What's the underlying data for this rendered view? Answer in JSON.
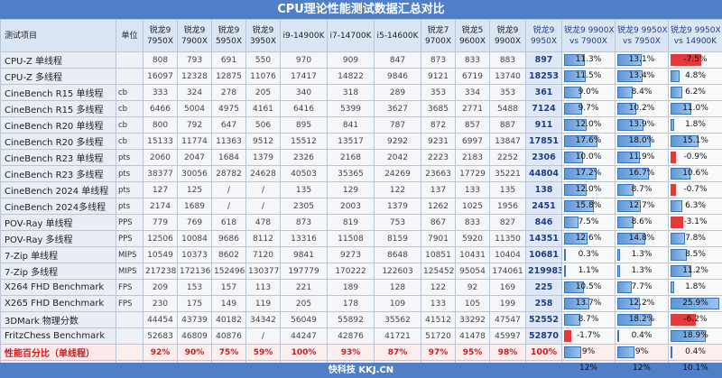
{
  "title": "CPU理论性能测试数据汇总对比",
  "footer": "快科技 KKJ.CN",
  "headers": {
    "item": "测试项目",
    "unit": "单位",
    "cpus": [
      {
        "line1": "锐龙9",
        "line2": "7950X"
      },
      {
        "line1": "锐龙9",
        "line2": "7900X"
      },
      {
        "line1": "锐龙9",
        "line2": "5950X"
      },
      {
        "line1": "锐龙9",
        "line2": "3950X"
      },
      {
        "line1": "i9-14900K",
        "line2": ""
      },
      {
        "line1": "i7-14700K",
        "line2": ""
      },
      {
        "line1": "i5-14600K",
        "line2": ""
      },
      {
        "line1": "锐龙7",
        "line2": "9700X"
      },
      {
        "line1": "锐龙5",
        "line2": "9600X"
      },
      {
        "line1": "锐龙9",
        "line2": "9900X"
      },
      {
        "line1": "锐龙9",
        "line2": "9950X"
      }
    ],
    "comparisons": [
      {
        "line1": "锐龙9 9900X",
        "line2": "vs 7900X"
      },
      {
        "line1": "锐龙9 9950X",
        "line2": "vs 7950X"
      },
      {
        "line1": "锐龙9 9950X",
        "line2": "vs 14900K"
      }
    ]
  },
  "chart_data": {
    "type": "table",
    "title": "CPU理论性能测试数据汇总对比",
    "rows": [
      {
        "name": "CPU-Z 单线程",
        "unit": "",
        "values": [
          "808",
          "793",
          "691",
          "550",
          "970",
          "909",
          "847",
          "873",
          "833",
          "883",
          "897"
        ],
        "cmp": [
          "11.3%",
          "13.1%",
          "-7.5%"
        ],
        "cmpv": [
          11.3,
          13.1,
          -7.5
        ]
      },
      {
        "name": "CPU-Z 多线程",
        "unit": "",
        "values": [
          "16097",
          "12328",
          "12875",
          "11076",
          "17417",
          "14822",
          "9846",
          "9121",
          "6719",
          "13740",
          "18253"
        ],
        "cmp": [
          "11.5%",
          "13.4%",
          "4.8%"
        ],
        "cmpv": [
          11.5,
          13.4,
          4.8
        ]
      },
      {
        "name": "CineBench R15 单线程",
        "unit": "cb",
        "values": [
          "333",
          "324",
          "278",
          "205",
          "340",
          "318",
          "289",
          "353",
          "334",
          "353",
          "361"
        ],
        "cmp": [
          "9.0%",
          "8.4%",
          "6.2%"
        ],
        "cmpv": [
          9.0,
          8.4,
          6.2
        ]
      },
      {
        "name": "CineBench R15 多线程",
        "unit": "cb",
        "values": [
          "6466",
          "5004",
          "4975",
          "4161",
          "6416",
          "5399",
          "3627",
          "3685",
          "2771",
          "5488",
          "7124"
        ],
        "cmp": [
          "9.7%",
          "10.2%",
          "11.0%"
        ],
        "cmpv": [
          9.7,
          10.2,
          11.0
        ]
      },
      {
        "name": "CineBench R20 单线程",
        "unit": "cb",
        "values": [
          "800",
          "792",
          "647",
          "506",
          "895",
          "841",
          "787",
          "872",
          "857",
          "887",
          "911"
        ],
        "cmp": [
          "12.0%",
          "13.9%",
          "1.8%"
        ],
        "cmpv": [
          12.0,
          13.9,
          1.8
        ]
      },
      {
        "name": "CineBench R20 多线程",
        "unit": "cb",
        "values": [
          "15133",
          "11774",
          "11363",
          "9512",
          "15512",
          "13517",
          "9292",
          "9231",
          "6997",
          "13847",
          "17851"
        ],
        "cmp": [
          "17.6%",
          "18.0%",
          "15.1%"
        ],
        "cmpv": [
          17.6,
          18.0,
          15.1
        ]
      },
      {
        "name": "CineBench R23 单线程",
        "unit": "pts",
        "values": [
          "2060",
          "2047",
          "1684",
          "1379",
          "2326",
          "2168",
          "2042",
          "2223",
          "2183",
          "2252",
          "2306"
        ],
        "cmp": [
          "10.0%",
          "11.9%",
          "-0.9%"
        ],
        "cmpv": [
          10.0,
          11.9,
          -0.9
        ]
      },
      {
        "name": "CineBench R23 多线程",
        "unit": "pts",
        "values": [
          "38377",
          "30056",
          "28782",
          "24628",
          "40503",
          "35365",
          "24269",
          "23663",
          "17729",
          "35221",
          "44804"
        ],
        "cmp": [
          "17.2%",
          "16.7%",
          "10.6%"
        ],
        "cmpv": [
          17.2,
          16.7,
          10.6
        ]
      },
      {
        "name": "CineBench 2024 单线程",
        "unit": "pts",
        "values": [
          "127",
          "125",
          "/",
          "/",
          "135",
          "129",
          "122",
          "137",
          "133",
          "135",
          "138"
        ],
        "cmp": [
          "12.0%",
          "8.7%",
          "-0.7%"
        ],
        "cmpv": [
          12.0,
          8.7,
          -0.7
        ]
      },
      {
        "name": "CineBench 2024多线程",
        "unit": "pts",
        "values": [
          "2174",
          "1689",
          "/",
          "/",
          "2305",
          "2003",
          "1379",
          "1262",
          "1025",
          "1956",
          "2451"
        ],
        "cmp": [
          "15.8%",
          "12.7%",
          "6.3%"
        ],
        "cmpv": [
          15.8,
          12.7,
          6.3
        ]
      },
      {
        "name": "POV-Ray 单线程",
        "unit": "PPS",
        "values": [
          "779",
          "769",
          "618",
          "478",
          "873",
          "819",
          "753",
          "867",
          "833",
          "827",
          "846"
        ],
        "cmp": [
          "7.5%",
          "8.6%",
          "-3.1%"
        ],
        "cmpv": [
          7.5,
          8.6,
          -3.1
        ]
      },
      {
        "name": "POV-Ray 多线程",
        "unit": "PPS",
        "values": [
          "12506",
          "10084",
          "9686",
          "8112",
          "13316",
          "11508",
          "8159",
          "7901",
          "5920",
          "11350",
          "14351"
        ],
        "cmp": [
          "12.6%",
          "14.8%",
          "7.8%"
        ],
        "cmpv": [
          12.6,
          14.8,
          7.8
        ]
      },
      {
        "name": "7-Zip 单线程",
        "unit": "MIPS",
        "values": [
          "10549",
          "10373",
          "8602",
          "7120",
          "9841",
          "9273",
          "8648",
          "10851",
          "10431",
          "10404",
          "10681"
        ],
        "cmp": [
          "0.3%",
          "1.3%",
          "8.5%"
        ],
        "cmpv": [
          0.3,
          1.3,
          8.5
        ]
      },
      {
        "name": "7-Zip 多线程",
        "unit": "MIPS",
        "values": [
          "217238",
          "172136",
          "152496",
          "130377",
          "197779",
          "170222",
          "122603",
          "125452",
          "95054",
          "174061",
          "219983"
        ],
        "cmp": [
          "1.1%",
          "1.3%",
          "11.2%"
        ],
        "cmpv": [
          1.1,
          1.3,
          11.2
        ]
      },
      {
        "name": "X264 FHD Benchmark",
        "unit": "FPS",
        "values": [
          "209",
          "153",
          "157",
          "113",
          "221",
          "189",
          "128",
          "122",
          "92",
          "169",
          "225"
        ],
        "cmp": [
          "10.5%",
          "7.7%",
          "1.8%"
        ],
        "cmpv": [
          10.5,
          7.7,
          1.8
        ]
      },
      {
        "name": "X265 FHD Benchmark",
        "unit": "FPS",
        "values": [
          "230",
          "175",
          "149",
          "119",
          "205",
          "178",
          "109",
          "133",
          "105",
          "199",
          "258"
        ],
        "cmp": [
          "13.7%",
          "12.2%",
          "25.9%"
        ],
        "cmpv": [
          13.7,
          12.2,
          25.9
        ]
      },
      {
        "name": "3DMark 物理分数",
        "unit": "",
        "values": [
          "44454",
          "43739",
          "40182",
          "34342",
          "56049",
          "55892",
          "35562",
          "41512",
          "33292",
          "47547",
          "52552"
        ],
        "cmp": [
          "8.7%",
          "18.2%",
          "-6.2%"
        ],
        "cmpv": [
          8.7,
          18.2,
          -6.2
        ]
      },
      {
        "name": "FritzChess Benchmark",
        "unit": "",
        "values": [
          "52683",
          "46809",
          "40876",
          "/",
          "44247",
          "42876",
          "41721",
          "51720",
          "41478",
          "45997",
          "52870"
        ],
        "cmp": [
          "-1.7%",
          "0.4%",
          "18.9%"
        ],
        "cmpv": [
          -1.7,
          0.4,
          18.9
        ]
      },
      {
        "name": "性能百分比（单线程）",
        "unit": "",
        "pct": true,
        "values": [
          "92%",
          "90%",
          "75%",
          "59%",
          "100%",
          "93%",
          "87%",
          "97%",
          "95%",
          "98%",
          "100%"
        ],
        "cmp": [
          "9%",
          "9%",
          "0.4%"
        ],
        "cmpv": [
          9,
          9,
          0.4
        ]
      },
      {
        "name": "性能百分比（多线程）",
        "unit": "",
        "pct": true,
        "values": [
          "90%",
          "69%",
          "67%",
          "55%",
          "91%",
          "78%",
          "54%",
          "54%",
          "40%",
          "78%",
          "100%"
        ],
        "cmp": [
          "12%",
          "12%",
          "10.1%"
        ],
        "cmpv": [
          12,
          12,
          10.1
        ]
      }
    ],
    "bar_scale_max": 26
  }
}
